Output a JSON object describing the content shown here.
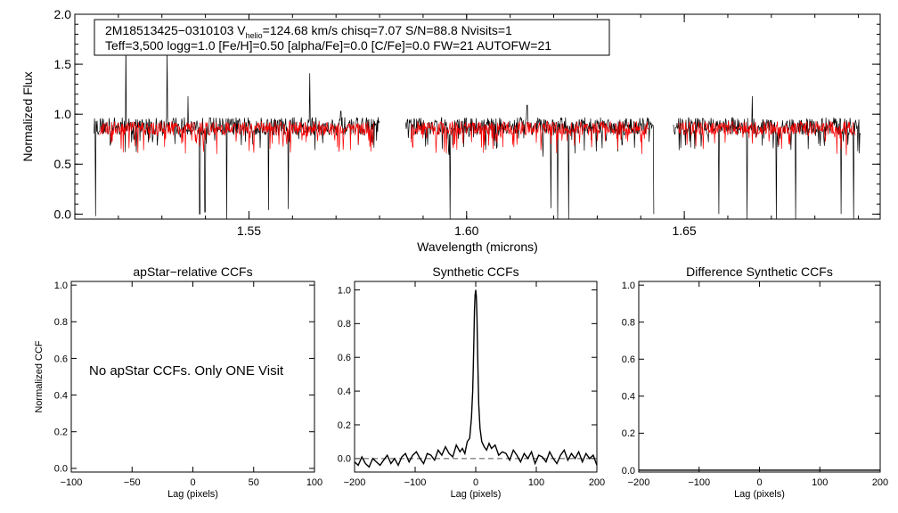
{
  "chart_data": [
    {
      "type": "line",
      "infobox": {
        "line1_pre": "2M18513425−0310103  V",
        "line1_sub": "helio",
        "line1_post": "=124.68 km/s  chisq=7.07  S/N=88.8  Nvisits=1",
        "line2": "Teff=3,500 logg=1.0 [Fe/H]=0.50 [alpha/Fe]=0.0 [C/Fe]=0.0 FW=21 AUTOFW=21"
      },
      "xlabel": "Wavelength (microns)",
      "ylabel": "Normalized Flux",
      "xlim": [
        1.51,
        1.695
      ],
      "ylim": [
        -0.05,
        2.0
      ],
      "xticks": [
        1.55,
        1.6,
        1.65
      ],
      "xticklabels": [
        "1.55",
        "1.60",
        "1.65"
      ],
      "yticks": [
        0.0,
        0.5,
        1.0,
        1.5,
        2.0
      ],
      "yticklabels": [
        "0.0",
        "0.5",
        "1.0",
        "1.5",
        "2.0"
      ],
      "chips": [
        [
          1.5144,
          1.58
        ],
        [
          1.586,
          1.643
        ],
        [
          1.6475,
          1.6905
        ]
      ],
      "series": [
        {
          "color": "#000000",
          "base": 0.88,
          "noise": 0.09
        },
        {
          "color": "#ff0000",
          "base": 0.86,
          "noise": 0.07
        }
      ],
      "spikes": [
        [
          1.5217,
          1.78
        ],
        [
          1.5312,
          1.66
        ],
        [
          1.536,
          1.18
        ],
        [
          1.564,
          1.41
        ],
        [
          1.5711,
          1.03
        ],
        [
          1.6139,
          1.09
        ],
        [
          1.6656,
          1.18
        ]
      ],
      "drops": [
        [
          1.5148,
          -0.02
        ],
        [
          1.5387,
          0.0
        ],
        [
          1.5399,
          0.02
        ],
        [
          1.5449,
          -0.05
        ],
        [
          1.5545,
          0.04
        ],
        [
          1.559,
          0.05
        ],
        [
          1.58,
          0.0
        ],
        [
          1.5962,
          -0.05
        ],
        [
          1.6194,
          0.06
        ],
        [
          1.6209,
          -0.05
        ],
        [
          1.6234,
          -0.05
        ],
        [
          1.643,
          0.0
        ],
        [
          1.6579,
          0.0
        ],
        [
          1.6644,
          -0.05
        ],
        [
          1.6711,
          -0.05
        ],
        [
          1.6756,
          -0.05
        ],
        [
          1.686,
          0.0
        ],
        [
          1.6889,
          -0.05
        ]
      ]
    },
    {
      "type": "line",
      "title": "apStar−relative CCFs",
      "xlabel": "Lag (pixels)",
      "ylabel": "Normalized CCF",
      "xlim": [
        -100,
        100
      ],
      "ylim": [
        -0.02,
        1.02
      ],
      "xticks": [
        -100,
        -50,
        0,
        50,
        100
      ],
      "xticklabels": [
        "−100",
        "−50",
        "0",
        "50",
        "100"
      ],
      "yticks": [
        0.0,
        0.2,
        0.4,
        0.6,
        0.8,
        1.0
      ],
      "yticklabels": [
        "0.0",
        "0.2",
        "0.4",
        "0.6",
        "0.8",
        "1.0"
      ],
      "note": "No apStar CCFs.  Only ONE Visit"
    },
    {
      "type": "line",
      "title": "Synthetic CCFs",
      "xlabel": "Lag (pixels)",
      "xlim": [
        -200,
        200
      ],
      "ylim": [
        -0.08,
        1.05
      ],
      "xticks": [
        -200,
        -100,
        0,
        100,
        200
      ],
      "xticklabels": [
        "−200",
        "−100",
        "0",
        "100",
        "200"
      ],
      "yticks": [
        0.0,
        0.2,
        0.4,
        0.6,
        0.8,
        1.0
      ],
      "yticklabels": [
        "0.0",
        "0.2",
        "0.4",
        "0.6",
        "0.8",
        "1.0"
      ],
      "baseline": 0.0,
      "series": [
        {
          "x": [
            -200,
            -194,
            -188,
            -182,
            -176,
            -170,
            -164,
            -158,
            -152,
            -146,
            -140,
            -134,
            -128,
            -122,
            -116,
            -110,
            -104,
            -98,
            -92,
            -86,
            -80,
            -74,
            -68,
            -62,
            -56,
            -50,
            -44,
            -38,
            -32,
            -26,
            -22,
            -18,
            -14,
            -10,
            -7,
            -5,
            -4,
            -3,
            -2,
            -1,
            0,
            1,
            2,
            3,
            4,
            5,
            7,
            10,
            14,
            18,
            22,
            26,
            32,
            38,
            44,
            50,
            56,
            62,
            68,
            74,
            80,
            86,
            92,
            98,
            104,
            110,
            116,
            122,
            128,
            134,
            140,
            146,
            152,
            158,
            164,
            170,
            176,
            182,
            188,
            194,
            200
          ],
          "y": [
            -0.02,
            -0.04,
            0.01,
            -0.03,
            -0.05,
            0.0,
            -0.02,
            -0.04,
            -0.01,
            0.02,
            -0.03,
            0.0,
            -0.04,
            0.01,
            0.03,
            -0.02,
            0.02,
            0.04,
            0.0,
            -0.03,
            0.03,
            0.02,
            -0.01,
            0.05,
            0.02,
            0.07,
            0.03,
            0.01,
            0.08,
            0.04,
            0.06,
            0.03,
            0.1,
            0.12,
            0.24,
            0.4,
            0.55,
            0.72,
            0.88,
            0.97,
            1.0,
            0.96,
            0.84,
            0.66,
            0.48,
            0.32,
            0.18,
            0.1,
            0.07,
            0.05,
            0.09,
            0.06,
            0.08,
            0.02,
            0.04,
            0.03,
            -0.01,
            0.05,
            0.02,
            -0.02,
            0.03,
            0.0,
            0.04,
            -0.03,
            0.02,
            0.01,
            -0.02,
            0.04,
            0.0,
            -0.03,
            0.02,
            0.05,
            -0.01,
            0.03,
            0.0,
            0.04,
            -0.02,
            0.03,
            0.0,
            0.02,
            -0.04
          ]
        }
      ]
    },
    {
      "type": "line",
      "title": "Difference Synthetic CCFs",
      "xlabel": "Lag (pixels)",
      "xlim": [
        -200,
        200
      ],
      "ylim": [
        -0.01,
        1.02
      ],
      "xticks": [
        -200,
        -100,
        0,
        100,
        200
      ],
      "xticklabels": [
        "−200",
        "−100",
        "0",
        "100",
        "200"
      ],
      "yticks": [
        0.0,
        0.2,
        0.4,
        0.6,
        0.8,
        1.0
      ],
      "yticklabels": [
        "0.0",
        "0.2",
        "0.4",
        "0.6",
        "0.8",
        "1.0"
      ],
      "series": [
        {
          "x": [
            -200,
            200
          ],
          "y": [
            0.0,
            0.0
          ]
        }
      ]
    }
  ]
}
